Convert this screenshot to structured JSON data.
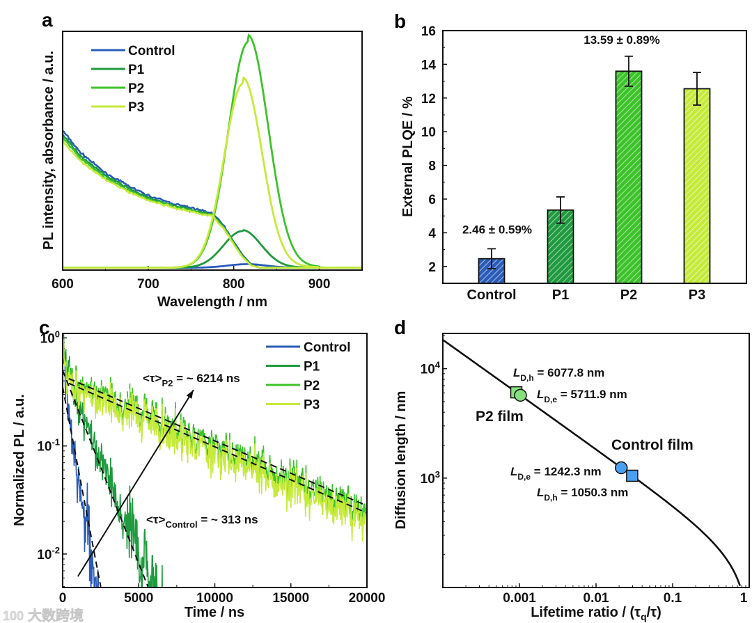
{
  "colors": {
    "Control": "#2a5cb8",
    "P1": "#1f9a3e",
    "P2": "#3cc32a",
    "P3": "#c5ea3a"
  },
  "watermark": {
    "text": "大数跨境",
    "logo": "100"
  },
  "chart_data": [
    {
      "panel_label": "a",
      "type": "line",
      "xlabel": "Wavelength / nm",
      "ylabel": "PL intensity, absorbance / a.u.",
      "xlim": [
        600,
        950
      ],
      "ylim": [
        -0.01,
        1.0
      ],
      "xticks": [
        600,
        700,
        800,
        900
      ],
      "xtick_labels": [
        "600",
        "700",
        "800",
        "900"
      ],
      "legend": {
        "placement": "top-left",
        "entries": [
          "Control",
          "P1",
          "P2",
          "P3"
        ]
      },
      "absorbance": {
        "x": [
          600,
          620,
          650,
          680,
          700,
          730,
          760,
          775,
          790,
          800,
          810,
          820,
          830
        ],
        "series": [
          {
            "name": "Control",
            "values": [
              0.58,
              0.49,
              0.4,
              0.34,
              0.305,
              0.27,
              0.245,
              0.23,
              0.17,
              0.11,
              0.055,
              0.015,
              0.0
            ]
          },
          {
            "name": "P1",
            "values": [
              0.565,
              0.475,
              0.39,
              0.33,
              0.295,
              0.262,
              0.238,
              0.224,
              0.165,
              0.105,
              0.05,
              0.012,
              0.0
            ]
          },
          {
            "name": "P2",
            "values": [
              0.55,
              0.465,
              0.38,
              0.322,
              0.29,
              0.258,
              0.233,
              0.22,
              0.16,
              0.1,
              0.048,
              0.01,
              0.0
            ]
          },
          {
            "name": "P3",
            "values": [
              0.535,
              0.455,
              0.372,
              0.316,
              0.285,
              0.254,
              0.23,
              0.218,
              0.158,
              0.098,
              0.046,
              0.01,
              0.0
            ]
          }
        ]
      },
      "pl_peaks": [
        {
          "name": "Control",
          "center_nm": 815,
          "fwhm_nm": 52,
          "amplitude": 0.015
        },
        {
          "name": "P1",
          "center_nm": 810,
          "fwhm_nm": 52,
          "amplitude": 0.155
        },
        {
          "name": "P2",
          "center_nm": 817,
          "fwhm_nm": 55,
          "amplitude": 0.955
        },
        {
          "name": "P3",
          "center_nm": 811,
          "fwhm_nm": 52,
          "amplitude": 0.78
        }
      ]
    },
    {
      "panel_label": "b",
      "type": "bar",
      "ylabel": "External PLQE / %",
      "ylim": [
        1,
        16
      ],
      "yticks": [
        2,
        4,
        6,
        8,
        10,
        12,
        14,
        16
      ],
      "ytick_labels": [
        "2",
        "4",
        "6",
        "8",
        "10",
        "12",
        "14",
        "16"
      ],
      "categories": [
        "Control",
        "P1",
        "P2",
        "P3"
      ],
      "values": [
        2.46,
        5.35,
        13.59,
        12.55
      ],
      "errors": [
        0.59,
        0.78,
        0.89,
        0.97
      ],
      "annotations": [
        {
          "category": "Control",
          "text": "2.46 ± 0.59%"
        },
        {
          "category": "P2",
          "text": "13.59 ± 0.89%"
        }
      ]
    },
    {
      "panel_label": "c",
      "type": "line",
      "xlabel": "Time / ns",
      "ylabel": "Normalized PL / a.u.",
      "xlim": [
        0,
        20000
      ],
      "ylim": [
        0.0049,
        1.1
      ],
      "yscale": "log",
      "xticks": [
        0,
        5000,
        10000,
        15000,
        20000
      ],
      "xtick_labels": [
        "0",
        "5000",
        "10000",
        "15000",
        "20000"
      ],
      "yticks": [
        1,
        0.1,
        0.01
      ],
      "ytick_base": "10",
      "ytick_exponents": [
        "0",
        "-1",
        "-2"
      ],
      "legend": {
        "placement": "top-right",
        "entries": [
          "Control",
          "P1",
          "P2",
          "P3"
        ]
      },
      "decays": [
        {
          "name": "Control",
          "a1": 0.7,
          "tau1_ns": 180,
          "a2": 0.3,
          "tau2_ns": 520,
          "noise": 0.35
        },
        {
          "name": "P1",
          "a1": 0.45,
          "tau1_ns": 250,
          "a2": 0.55,
          "tau2_ns": 1250,
          "noise": 0.35
        },
        {
          "name": "P2",
          "a1": 0.58,
          "tau1_ns": 150,
          "a2": 0.42,
          "tau2_ns": 7000,
          "noise": 0.3
        },
        {
          "name": "P3",
          "a1": 0.6,
          "tau1_ns": 150,
          "a2": 0.38,
          "tau2_ns": 6800,
          "noise": 0.3
        }
      ],
      "fits": [
        {
          "x": [
            0,
            2500
          ],
          "y": [
            0.35,
            0.005
          ]
        },
        {
          "x": [
            0,
            5600
          ],
          "y": [
            0.5,
            0.005
          ]
        },
        {
          "x": [
            400,
            20000
          ],
          "y": [
            0.42,
            0.028
          ]
        },
        {
          "x": [
            400,
            20000
          ],
          "y": [
            0.38,
            0.024
          ]
        }
      ],
      "arrow": {
        "from": [
          1000,
          0.0062
        ],
        "to": [
          8600,
          0.33
        ]
      },
      "annotations": [
        {
          "prefix": "<τ>",
          "sub": "P2",
          "value": " = ~ 6214 ns"
        },
        {
          "prefix": "<τ>",
          "sub": "Control",
          "value": " = ~ 313 ns"
        }
      ]
    },
    {
      "panel_label": "d",
      "type": "line",
      "xlabel": "Lifetime ratio / (τq/τ)",
      "xlabel_parts": {
        "main": "Lifetime ratio / (τ",
        "sub": "q",
        "end": "/τ)"
      },
      "ylabel": "Diffusion length / nm",
      "xscale": "log",
      "yscale": "log",
      "xlim": [
        0.0001,
        1
      ],
      "ylim": [
        100,
        21000
      ],
      "xticks": [
        0.001,
        0.01,
        0.1,
        1
      ],
      "xtick_labels": [
        "0.001",
        "0.01",
        "0.1",
        "1"
      ],
      "yticks": [
        10000,
        1000
      ],
      "ytick_base": "10",
      "ytick_exponents": [
        "4",
        "3"
      ],
      "curve": {
        "formula": "L = A*sqrt(1/r - 1)",
        "A_nm": 183.5
      },
      "points": [
        {
          "film": "P2",
          "shape": "square",
          "label": "L",
          "sub": "D,h",
          "value_nm": 6077.8,
          "text": " = 6077.8 nm"
        },
        {
          "film": "P2",
          "shape": "circle",
          "label": "L",
          "sub": "D,e",
          "value_nm": 5711.9,
          "text": " = 5711.9 nm"
        },
        {
          "film": "Control",
          "shape": "circle",
          "label": "L",
          "sub": "D,e",
          "value_nm": 1242.3,
          "text": " = 1242.3 nm"
        },
        {
          "film": "Control",
          "shape": "square",
          "label": "L",
          "sub": "D,h",
          "value_nm": 1050.3,
          "text": " = 1050.3 nm"
        }
      ],
      "film_labels": [
        {
          "text": "P2 film",
          "color": "#3cbf3c"
        },
        {
          "text": "Control film",
          "color": "#1f5fb8"
        }
      ],
      "marker_colors": {
        "P2": "#86e07e",
        "Control": "#4a9ff0"
      }
    }
  ]
}
